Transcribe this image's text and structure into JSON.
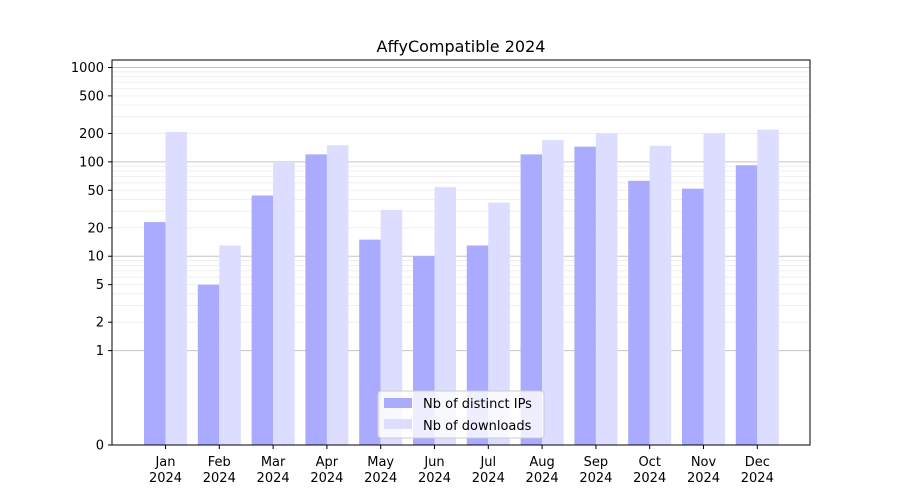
{
  "chart_data": {
    "type": "bar",
    "title": "AffyCompatible 2024",
    "xlabel": "",
    "ylabel": "",
    "yscale": "symlog",
    "ylim": [
      0,
      1200
    ],
    "yticks": [
      0,
      1,
      2,
      5,
      10,
      20,
      50,
      100,
      200,
      500,
      1000
    ],
    "ytick_labels": [
      "0",
      "1",
      "2",
      "5",
      "10",
      "20",
      "50",
      "100",
      "200",
      "500",
      "1000"
    ],
    "categories": [
      [
        "Jan",
        "2024"
      ],
      [
        "Feb",
        "2024"
      ],
      [
        "Mar",
        "2024"
      ],
      [
        "Apr",
        "2024"
      ],
      [
        "May",
        "2024"
      ],
      [
        "Jun",
        "2024"
      ],
      [
        "Jul",
        "2024"
      ],
      [
        "Aug",
        "2024"
      ],
      [
        "Sep",
        "2024"
      ],
      [
        "Oct",
        "2024"
      ],
      [
        "Nov",
        "2024"
      ],
      [
        "Dec",
        "2024"
      ]
    ],
    "series": [
      {
        "name": "Nb of distinct IPs",
        "color": "#aaaaff",
        "values": [
          23,
          5,
          44,
          120,
          15,
          10,
          13,
          120,
          145,
          63,
          52,
          92
        ]
      },
      {
        "name": "Nb of downloads",
        "color": "#ddddff",
        "values": [
          207,
          13,
          100,
          150,
          31,
          54,
          37,
          170,
          202,
          148,
          202,
          220
        ]
      }
    ],
    "grid": "horizontal",
    "legend_position": "bottom-center"
  }
}
